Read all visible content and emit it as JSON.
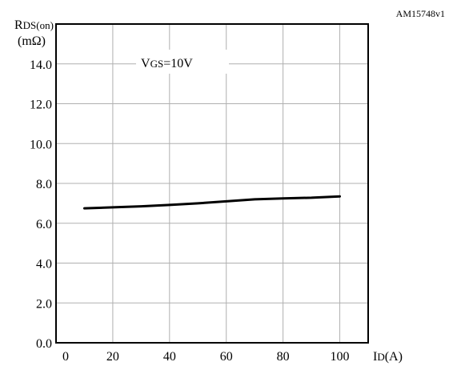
{
  "figure_code": "AM15748v1",
  "chart_data": {
    "type": "line",
    "title": "",
    "ylabel": {
      "main": "R",
      "sub": "DS(on)",
      "unit": "(mΩ)"
    },
    "xlabel": {
      "main": "I",
      "sub": "D",
      "unit": "(A)"
    },
    "annotation": {
      "main": "V",
      "sub": "GS",
      "rest": "=10V"
    },
    "xlim": [
      0,
      110
    ],
    "ylim": [
      0,
      16
    ],
    "xticks": [
      0,
      20,
      40,
      60,
      80,
      100
    ],
    "xtick_labels": [
      "0",
      "20",
      "40",
      "60",
      "80",
      "100"
    ],
    "yticks": [
      0,
      2,
      4,
      6,
      8,
      10,
      12,
      14
    ],
    "ytick_labels": [
      "0.0",
      "2.0",
      "4.0",
      "6.0",
      "8.0",
      "10.0",
      "12.0",
      "14.0"
    ],
    "grid": true,
    "colors": {
      "line": "#000000",
      "grid": "#b0b0b0",
      "frame": "#000000"
    },
    "series": [
      {
        "x": [
          10,
          20,
          30,
          40,
          50,
          60,
          70,
          80,
          90,
          100
        ],
        "y": [
          6.75,
          6.8,
          6.85,
          6.92,
          7.0,
          7.1,
          7.2,
          7.25,
          7.28,
          7.35
        ]
      }
    ]
  }
}
